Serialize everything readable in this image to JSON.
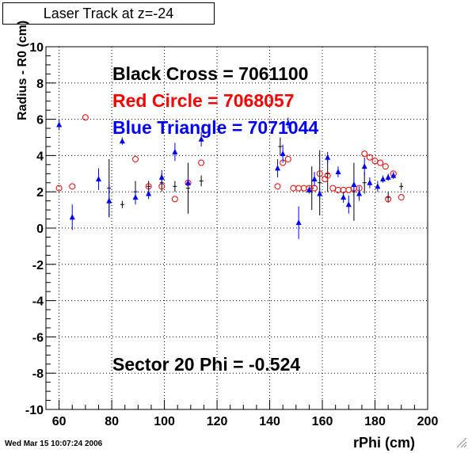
{
  "window": {
    "title": "Laser Track at z=-24",
    "timestamp": "Wed Mar 15 10:07:24 2006"
  },
  "chart_data": {
    "type": "scatter",
    "title": "Laser Track at z=-24",
    "xlabel": "rPhi (cm)",
    "ylabel": "Radius - R0 (cm)",
    "xlim": [
      55,
      200
    ],
    "ylim": [
      -10,
      10
    ],
    "xticks": [
      60,
      80,
      100,
      120,
      140,
      160,
      180,
      200
    ],
    "yticks": [
      -10,
      -8,
      -6,
      -4,
      -2,
      0,
      2,
      4,
      6,
      8,
      10
    ],
    "grid": true,
    "annotations": [
      {
        "text": "Black Cross  = 7061100",
        "color": "#000000"
      },
      {
        "text": "Red Circle = 7068057",
        "color": "#ff0000"
      },
      {
        "text": "Blue Triangle = 7071044",
        "color": "#0000ff"
      },
      {
        "text": "Sector 20 Phi = -0.524",
        "color": "#000000"
      }
    ],
    "series": [
      {
        "marker": "cross",
        "color": "#000000",
        "points": [
          {
            "x": 79,
            "y": 2.2,
            "err": 1.6
          },
          {
            "x": 84,
            "y": 1.3,
            "err": 0.2
          },
          {
            "x": 89,
            "y": 2.0,
            "err": 0.6
          },
          {
            "x": 94,
            "y": 2.3,
            "err": 0.3
          },
          {
            "x": 99,
            "y": 2.5,
            "err": 0.5
          },
          {
            "x": 104,
            "y": 2.3,
            "err": 0.3
          },
          {
            "x": 109,
            "y": 2.2,
            "err": 1.4
          },
          {
            "x": 114,
            "y": 2.6,
            "err": 0.3
          },
          {
            "x": 144,
            "y": 4.5,
            "err": 0.5
          },
          {
            "x": 156,
            "y": 2.2,
            "err": 1.2
          },
          {
            "x": 159,
            "y": 2.5,
            "err": 1.8
          },
          {
            "x": 162,
            "y": 3.0,
            "err": 1.0
          },
          {
            "x": 172,
            "y": 2.0,
            "err": 1.6
          },
          {
            "x": 176,
            "y": 2.5,
            "err": 0.6
          },
          {
            "x": 185,
            "y": 1.7,
            "err": 0.3
          },
          {
            "x": 190,
            "y": 2.3,
            "err": 0.2
          }
        ]
      },
      {
        "marker": "circle",
        "color": "#ff0000",
        "points": [
          {
            "x": 60,
            "y": 2.2
          },
          {
            "x": 65,
            "y": 2.3
          },
          {
            "x": 70,
            "y": 6.1
          },
          {
            "x": 89,
            "y": 3.8
          },
          {
            "x": 94,
            "y": 2.3
          },
          {
            "x": 99,
            "y": 2.3
          },
          {
            "x": 104,
            "y": 1.6
          },
          {
            "x": 109,
            "y": 2.5
          },
          {
            "x": 114,
            "y": 3.6
          },
          {
            "x": 143,
            "y": 2.3
          },
          {
            "x": 145,
            "y": 3.6
          },
          {
            "x": 147,
            "y": 3.8
          },
          {
            "x": 149,
            "y": 2.2
          },
          {
            "x": 151,
            "y": 2.2
          },
          {
            "x": 153,
            "y": 2.2
          },
          {
            "x": 155,
            "y": 2.2
          },
          {
            "x": 157,
            "y": 2.2
          },
          {
            "x": 159,
            "y": 3.0
          },
          {
            "x": 161,
            "y": 2.7
          },
          {
            "x": 162,
            "y": 2.9
          },
          {
            "x": 164,
            "y": 2.2
          },
          {
            "x": 166,
            "y": 2.1
          },
          {
            "x": 168,
            "y": 2.1
          },
          {
            "x": 170,
            "y": 2.1
          },
          {
            "x": 172,
            "y": 2.2
          },
          {
            "x": 174,
            "y": 2.2
          },
          {
            "x": 176,
            "y": 4.1
          },
          {
            "x": 178,
            "y": 3.9
          },
          {
            "x": 180,
            "y": 3.7
          },
          {
            "x": 182,
            "y": 3.6
          },
          {
            "x": 184,
            "y": 3.4
          },
          {
            "x": 185,
            "y": 1.6
          },
          {
            "x": 187,
            "y": 3.0
          },
          {
            "x": 190,
            "y": 1.7
          }
        ]
      },
      {
        "marker": "triangle",
        "color": "#0000ff",
        "points": [
          {
            "x": 60,
            "y": 5.7,
            "err": 0.3
          },
          {
            "x": 65,
            "y": 0.6,
            "err": 0.7
          },
          {
            "x": 75,
            "y": 2.7,
            "err": 0.6
          },
          {
            "x": 79,
            "y": 1.5,
            "err": 0.9
          },
          {
            "x": 84,
            "y": 4.8,
            "err": 0.2
          },
          {
            "x": 89,
            "y": 1.7,
            "err": 0.4
          },
          {
            "x": 94,
            "y": 1.9,
            "err": 0.3
          },
          {
            "x": 99,
            "y": 2.8,
            "err": 0.4
          },
          {
            "x": 104,
            "y": 4.2,
            "err": 0.5
          },
          {
            "x": 109,
            "y": 2.5,
            "err": 0.3
          },
          {
            "x": 114,
            "y": 4.9,
            "err": 0.4
          },
          {
            "x": 143,
            "y": 3.3,
            "err": 0.5
          },
          {
            "x": 145,
            "y": 4.1,
            "err": 0.5
          },
          {
            "x": 147,
            "y": 5.8,
            "err": 0.3
          },
          {
            "x": 151,
            "y": 0.3,
            "err": 0.9
          },
          {
            "x": 155,
            "y": 2.1,
            "err": 0.2
          },
          {
            "x": 157,
            "y": 2.7,
            "err": 0.4
          },
          {
            "x": 159,
            "y": 1.9,
            "err": 0.3
          },
          {
            "x": 162,
            "y": 3.9,
            "err": 0.3
          },
          {
            "x": 166,
            "y": 3.1,
            "err": 0.3
          },
          {
            "x": 168,
            "y": 1.7,
            "err": 0.3
          },
          {
            "x": 170,
            "y": 1.3,
            "err": 0.5
          },
          {
            "x": 172,
            "y": 2.4,
            "err": 0.4
          },
          {
            "x": 174,
            "y": 1.9,
            "err": 0.4
          },
          {
            "x": 176,
            "y": 3.4,
            "err": 0.5
          },
          {
            "x": 178,
            "y": 2.5,
            "err": 0.3
          },
          {
            "x": 181,
            "y": 2.3,
            "err": 0.3
          },
          {
            "x": 183,
            "y": 2.7,
            "err": 0.2
          },
          {
            "x": 185,
            "y": 2.8,
            "err": 0.2
          },
          {
            "x": 187,
            "y": 2.9,
            "err": 0.2
          }
        ]
      }
    ]
  }
}
